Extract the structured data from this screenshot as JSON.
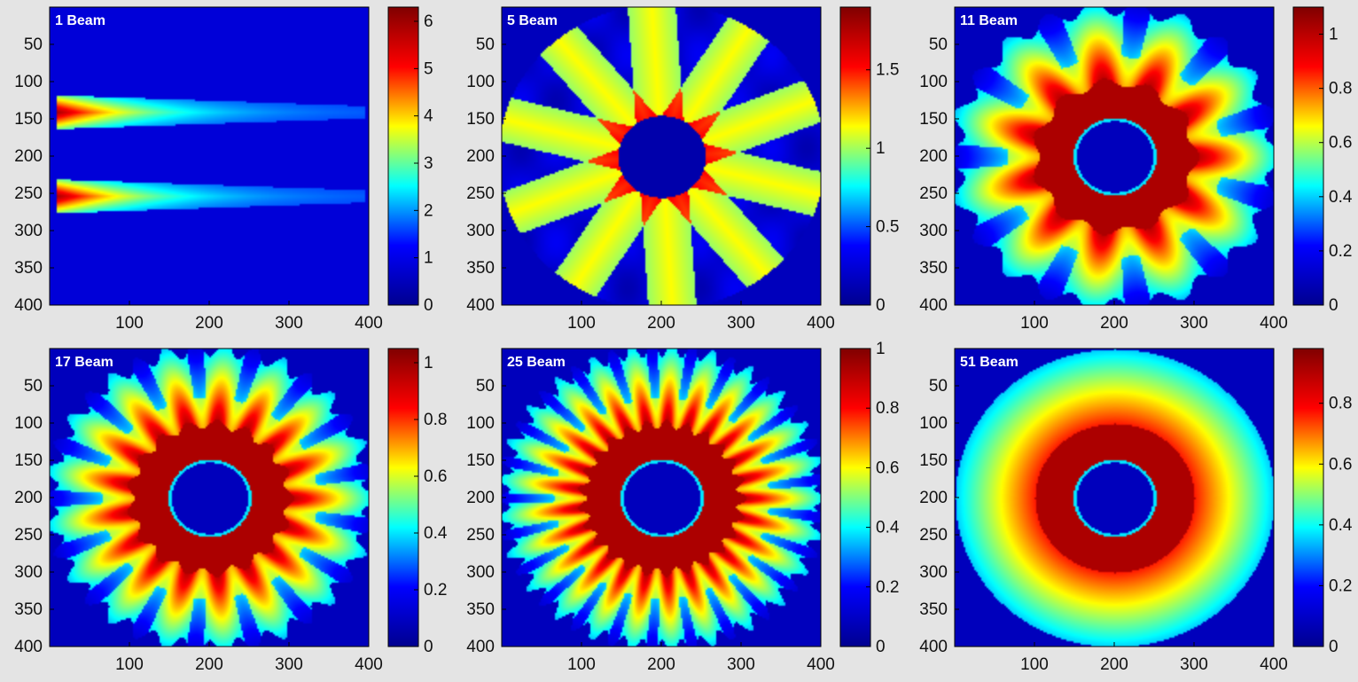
{
  "chart_data": [
    {
      "type": "heatmap",
      "title": "1 Beam",
      "pattern": "single",
      "x_ticks": [
        "100",
        "200",
        "300",
        "400"
      ],
      "x_tick_values": [
        100,
        200,
        300,
        400
      ],
      "y_ticks": [
        "50",
        "100",
        "150",
        "200",
        "250",
        "300",
        "350",
        "400"
      ],
      "y_tick_values": [
        50,
        100,
        150,
        200,
        250,
        300,
        350,
        400
      ],
      "xlim": [
        0,
        400
      ],
      "ylim": [
        0,
        400
      ],
      "colorbar": {
        "min": 0,
        "max": 6.3,
        "ticks": [
          "0",
          "1",
          "2",
          "3",
          "4",
          "5",
          "6"
        ],
        "tick_values": [
          0,
          1,
          2,
          3,
          4,
          5,
          6
        ]
      },
      "beam_rows": [
        140,
        253
      ],
      "beam_peak": 6.2
    },
    {
      "type": "heatmap",
      "title": "5 Beam",
      "pattern": "few",
      "beams": 5,
      "x_ticks": [
        "100",
        "200",
        "300",
        "400"
      ],
      "x_tick_values": [
        100,
        200,
        300,
        400
      ],
      "y_ticks": [
        "50",
        "100",
        "150",
        "200",
        "250",
        "300",
        "350",
        "400"
      ],
      "y_tick_values": [
        50,
        100,
        150,
        200,
        250,
        300,
        350,
        400
      ],
      "xlim": [
        0,
        400
      ],
      "ylim": [
        0,
        400
      ],
      "colorbar": {
        "min": 0,
        "max": 1.9,
        "ticks": [
          "0",
          "0.5",
          "1",
          "1.5"
        ],
        "tick_values": [
          0,
          0.5,
          1,
          1.5
        ]
      },
      "inner_radius": 55,
      "outer_radius": 205,
      "peak": 1.85
    },
    {
      "type": "heatmap",
      "title": "11 Beam",
      "pattern": "ring",
      "beams": 11,
      "x_ticks": [
        "100",
        "200",
        "300",
        "400"
      ],
      "x_tick_values": [
        100,
        200,
        300,
        400
      ],
      "y_ticks": [
        "50",
        "100",
        "150",
        "200",
        "250",
        "300",
        "350",
        "400"
      ],
      "y_tick_values": [
        50,
        100,
        150,
        200,
        250,
        300,
        350,
        400
      ],
      "xlim": [
        0,
        400
      ],
      "ylim": [
        0,
        400
      ],
      "colorbar": {
        "min": 0,
        "max": 1.1,
        "ticks": [
          "0",
          "0.2",
          "0.4",
          "0.6",
          "0.8",
          "1"
        ],
        "tick_values": [
          0,
          0.2,
          0.4,
          0.6,
          0.8,
          1.0
        ]
      },
      "inner_radius": 50,
      "outer_radius": 200,
      "ring_outer_radius": 100
    },
    {
      "type": "heatmap",
      "title": "17 Beam",
      "pattern": "ring",
      "beams": 17,
      "x_ticks": [
        "100",
        "200",
        "300",
        "400"
      ],
      "x_tick_values": [
        100,
        200,
        300,
        400
      ],
      "y_ticks": [
        "50",
        "100",
        "150",
        "200",
        "250",
        "300",
        "350",
        "400"
      ],
      "y_tick_values": [
        50,
        100,
        150,
        200,
        250,
        300,
        350,
        400
      ],
      "xlim": [
        0,
        400
      ],
      "ylim": [
        0,
        400
      ],
      "colorbar": {
        "min": 0,
        "max": 1.05,
        "ticks": [
          "0",
          "0.2",
          "0.4",
          "0.6",
          "0.8",
          "1"
        ],
        "tick_values": [
          0,
          0.2,
          0.4,
          0.6,
          0.8,
          1.0
        ]
      },
      "inner_radius": 50,
      "outer_radius": 200,
      "ring_outer_radius": 100
    },
    {
      "type": "heatmap",
      "title": "25 Beam",
      "pattern": "ring",
      "beams": 25,
      "x_ticks": [
        "100",
        "200",
        "300",
        "400"
      ],
      "x_tick_values": [
        100,
        200,
        300,
        400
      ],
      "y_ticks": [
        "50",
        "100",
        "150",
        "200",
        "250",
        "300",
        "350",
        "400"
      ],
      "y_tick_values": [
        50,
        100,
        150,
        200,
        250,
        300,
        350,
        400
      ],
      "xlim": [
        0,
        400
      ],
      "ylim": [
        0,
        400
      ],
      "colorbar": {
        "min": 0,
        "max": 1.0,
        "ticks": [
          "0",
          "0.2",
          "0.4",
          "0.6",
          "0.8",
          "1"
        ],
        "tick_values": [
          0,
          0.2,
          0.4,
          0.6,
          0.8,
          1.0
        ]
      },
      "inner_radius": 50,
      "outer_radius": 200,
      "ring_outer_radius": 100
    },
    {
      "type": "heatmap",
      "title": "51 Beam",
      "pattern": "ring",
      "beams": 51,
      "x_ticks": [
        "100",
        "200",
        "300",
        "400"
      ],
      "x_tick_values": [
        100,
        200,
        300,
        400
      ],
      "y_ticks": [
        "50",
        "100",
        "150",
        "200",
        "250",
        "300",
        "350",
        "400"
      ],
      "y_tick_values": [
        50,
        100,
        150,
        200,
        250,
        300,
        350,
        400
      ],
      "xlim": [
        0,
        400
      ],
      "ylim": [
        0,
        400
      ],
      "colorbar": {
        "min": 0,
        "max": 0.98,
        "ticks": [
          "0",
          "0.2",
          "0.4",
          "0.6",
          "0.8"
        ],
        "tick_values": [
          0,
          0.2,
          0.4,
          0.6,
          0.8
        ]
      },
      "inner_radius": 50,
      "outer_radius": 200,
      "ring_outer_radius": 100
    }
  ],
  "colormap": [
    "#00008f",
    "#0000ff",
    "#00ffff",
    "#ffff00",
    "#ff0000",
    "#800000"
  ]
}
